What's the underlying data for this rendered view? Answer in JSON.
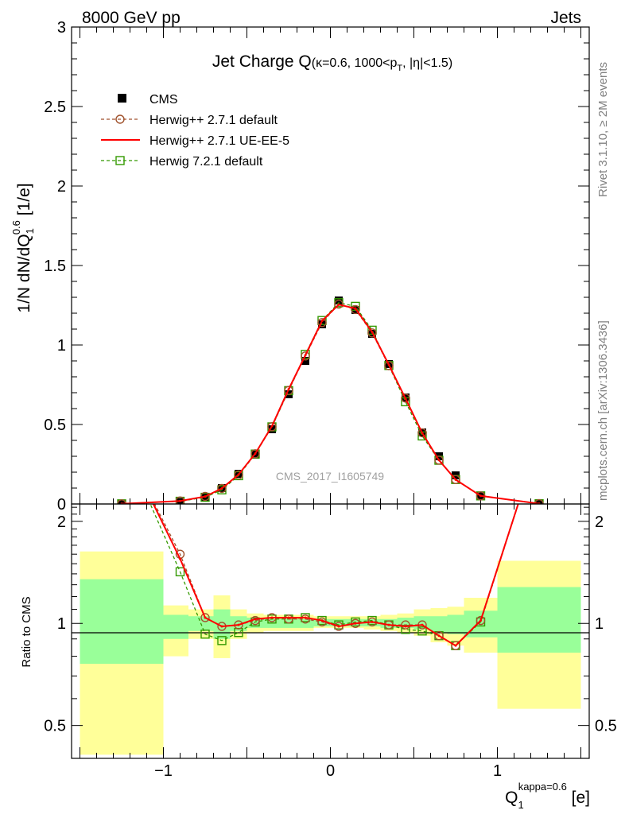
{
  "header": {
    "left": "8000 GeV pp",
    "right": "Jets"
  },
  "side_labels": {
    "rivet": "Rivet 3.1.10, ≥ 2M events",
    "mcplots": "mcplots.cern.ch [arXiv:1306.3436]"
  },
  "watermark": "CMS_2017_I1605749",
  "colors": {
    "data": "#000000",
    "herwig_default": "#a0522d",
    "herwig_ueee5": "#ff0000",
    "herwig7": "#339900",
    "band_inner": "#99ff99",
    "band_outer": "#ffff99"
  },
  "chart_data": [
    {
      "type": "scatter",
      "panel": "main",
      "title": {
        "main": "Jet Charge Q",
        "sub_pre": "(κ=0.6, 1000<p",
        "sub_sub": "T",
        "sub_post": ", |η|<1.5)"
      },
      "ylabel": {
        "pre": "1/N dN/dQ",
        "sub": "1",
        "sup": "0.6",
        "post": " [1/e]"
      },
      "xlim": [
        -1.55,
        1.55
      ],
      "ylim": [
        0,
        3
      ],
      "yticks": [
        "0",
        "0.5",
        "1",
        "1.5",
        "2",
        "2.5",
        "3"
      ],
      "legend_position": "top-left",
      "x": [
        -1.25,
        -0.9,
        -0.75,
        -0.65,
        -0.55,
        -0.45,
        -0.35,
        -0.25,
        -0.15,
        -0.05,
        0.05,
        0.15,
        0.25,
        0.35,
        0.45,
        0.55,
        0.65,
        0.75,
        0.9,
        1.25
      ],
      "series": [
        {
          "name": "CMS",
          "style": "data",
          "values": [
            0.001,
            0.012,
            0.045,
            0.1,
            0.19,
            0.31,
            0.47,
            0.69,
            0.9,
            1.13,
            1.28,
            1.22,
            1.07,
            0.88,
            0.67,
            0.45,
            0.3,
            0.18,
            0.05,
            0.002
          ]
        },
        {
          "name": "Herwig++ 2.7.1 default",
          "style": "dashed-circle",
          "values": [
            0.001,
            0.019,
            0.048,
            0.098,
            0.183,
            0.316,
            0.486,
            0.714,
            0.931,
            1.141,
            1.257,
            1.223,
            1.076,
            0.87,
            0.666,
            0.448,
            0.276,
            0.154,
            0.051,
            0.002
          ]
        },
        {
          "name": "Herwig++ 2.7.1 UE-EE-5",
          "style": "solid",
          "values": [
            0.001,
            0.019,
            0.047,
            0.098,
            0.185,
            0.317,
            0.49,
            0.722,
            0.935,
            1.152,
            1.254,
            1.23,
            1.081,
            0.876,
            0.663,
            0.446,
            0.276,
            0.153,
            0.051,
            0.002
          ]
        },
        {
          "name": "Herwig 7.2.1 default",
          "style": "dashed-square",
          "values": [
            0.001,
            0.017,
            0.042,
            0.089,
            0.178,
            0.314,
            0.485,
            0.713,
            0.941,
            1.154,
            1.266,
            1.243,
            1.093,
            0.871,
            0.643,
            0.428,
            0.275,
            0.154,
            0.051,
            0.002
          ]
        }
      ]
    },
    {
      "type": "line",
      "panel": "ratio",
      "ylabel": "Ratio to CMS",
      "xlabel": {
        "base": "Q",
        "sub": "1",
        "sup": "kappa=0.6",
        "post": " [e]"
      },
      "xlim": [
        -1.55,
        1.55
      ],
      "ylim": [
        0.4,
        2.25
      ],
      "yscale": "log",
      "xticks": [
        "−1",
        "0",
        "1"
      ],
      "yticks": [
        "0.5",
        "1",
        "2"
      ],
      "reference_line": 1,
      "bands": {
        "edges": [
          -1.5,
          -1.0,
          -0.85,
          -0.7,
          -0.6,
          -0.5,
          -0.4,
          -0.3,
          -0.2,
          -0.1,
          0.0,
          0.1,
          0.2,
          0.3,
          0.4,
          0.5,
          0.6,
          0.7,
          0.8,
          1.0,
          1.5
        ],
        "outer_low": [
          0.41,
          0.8,
          0.9,
          0.79,
          0.9,
          0.94,
          0.95,
          0.95,
          0.95,
          0.97,
          0.97,
          0.97,
          0.96,
          0.95,
          0.94,
          0.92,
          0.88,
          0.86,
          0.82,
          0.56
        ],
        "outer_high": [
          1.63,
          1.13,
          1.1,
          1.21,
          1.1,
          1.07,
          1.06,
          1.06,
          1.06,
          1.05,
          1.05,
          1.05,
          1.05,
          1.06,
          1.07,
          1.1,
          1.11,
          1.12,
          1.19,
          1.53
        ],
        "inner_low": [
          0.76,
          0.9,
          0.95,
          0.9,
          0.95,
          0.97,
          0.97,
          0.97,
          0.97,
          0.98,
          0.98,
          0.98,
          0.98,
          0.97,
          0.97,
          0.96,
          0.94,
          0.93,
          0.91,
          0.82
        ],
        "inner_high": [
          1.35,
          1.06,
          1.05,
          1.1,
          1.05,
          1.04,
          1.03,
          1.03,
          1.03,
          1.03,
          1.03,
          1.03,
          1.03,
          1.03,
          1.04,
          1.05,
          1.05,
          1.06,
          1.09,
          1.28
        ]
      },
      "x": [
        -1.25,
        -0.9,
        -0.75,
        -0.65,
        -0.55,
        -0.45,
        -0.35,
        -0.25,
        -0.15,
        -0.05,
        0.05,
        0.15,
        0.25,
        0.35,
        0.45,
        0.55,
        0.65,
        0.75,
        0.9,
        1.25
      ],
      "series": [
        {
          "name": "Herwig++ 2.7.1 default",
          "style": "dashed-circle",
          "values": [
            3.5,
            1.6,
            1.04,
            0.98,
            0.99,
            1.02,
            1.04,
            1.03,
            1.03,
            1.01,
            0.98,
            1.0,
            1.01,
            0.99,
            0.99,
            0.99,
            0.92,
            0.86,
            1.02,
            3.5
          ]
        },
        {
          "name": "Herwig++ 2.7.1 UE-EE-5",
          "style": "solid",
          "values": [
            3.5,
            1.55,
            1.04,
            0.98,
            0.99,
            1.03,
            1.04,
            1.04,
            1.04,
            1.02,
            0.98,
            1.0,
            1.01,
            0.99,
            0.98,
            0.99,
            0.92,
            0.86,
            1.02,
            3.5
          ]
        },
        {
          "name": "Herwig 7.2.1 default",
          "style": "dashed-square",
          "values": [
            3.5,
            1.42,
            0.93,
            0.89,
            0.94,
            1.01,
            1.03,
            1.03,
            1.04,
            1.02,
            0.99,
            1.01,
            1.02,
            0.99,
            0.96,
            0.95,
            0.92,
            0.86,
            1.01,
            3.5
          ]
        }
      ]
    }
  ]
}
